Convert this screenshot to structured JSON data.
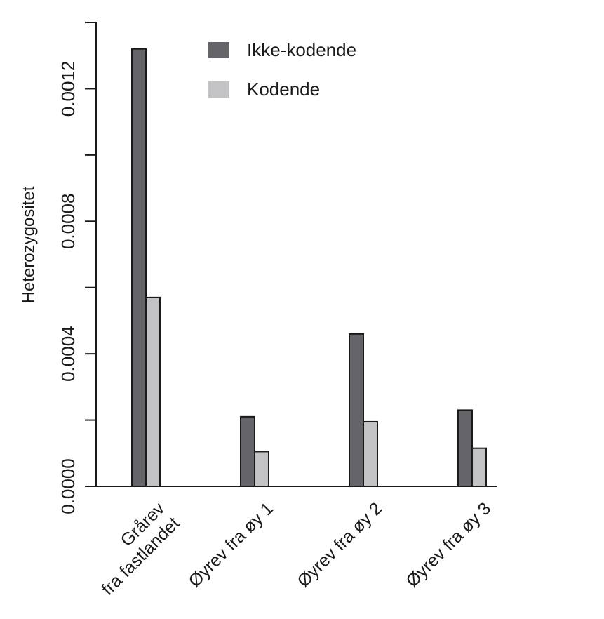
{
  "chart_data": {
    "type": "bar",
    "title": "",
    "xlabel": "",
    "ylabel": "Heterozygositet",
    "categories": [
      [
        "Grårev",
        "fra fastlandet"
      ],
      [
        "Øyrev fra øy 1"
      ],
      [
        "Øyrev fra øy 2"
      ],
      [
        "Øyrev fra øy 3"
      ]
    ],
    "series": [
      {
        "name": "Ikke-kodende",
        "color": "#646469",
        "values": [
          0.00132,
          0.00021,
          0.00046,
          0.00023
        ]
      },
      {
        "name": "Kodende",
        "color": "#c3c3c6",
        "values": [
          0.00057,
          0.000105,
          0.000195,
          0.000115
        ]
      }
    ],
    "ylim": [
      0,
      0.0014
    ],
    "yticks": [
      0.0,
      0.0002,
      0.0004,
      0.0006,
      0.0008,
      0.001,
      0.0012,
      0.0014
    ],
    "ytick_labels": [
      "0.0000",
      "",
      "0.0004",
      "",
      "0.0008",
      "",
      "0.0012",
      ""
    ],
    "grid": false,
    "legend_position": "top-center"
  }
}
